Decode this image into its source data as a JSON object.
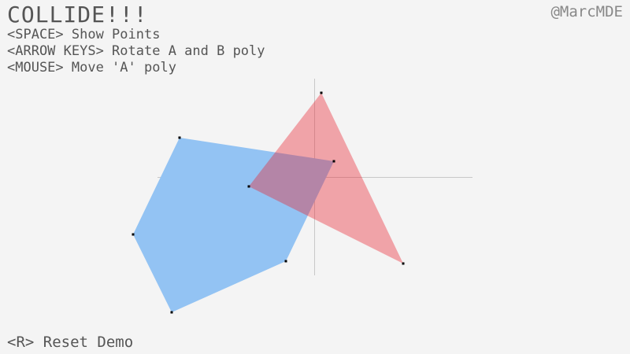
{
  "title": "COLLIDE!!!",
  "credit": "@MarcMDE",
  "instructions": [
    "<SPACE> Show Points",
    "<ARROW KEYS> Rotate A and B poly",
    "<MOUSE> Move 'A' poly"
  ],
  "reset": "<R> Reset Demo",
  "colors": {
    "background": "#f4f4f4",
    "poly_blue": "#93c3f3",
    "poly_red": "#f0a3a8",
    "overlap": "#b486a8",
    "axes": "#c8c8c8",
    "points": "#000000",
    "text": "#555555"
  }
}
